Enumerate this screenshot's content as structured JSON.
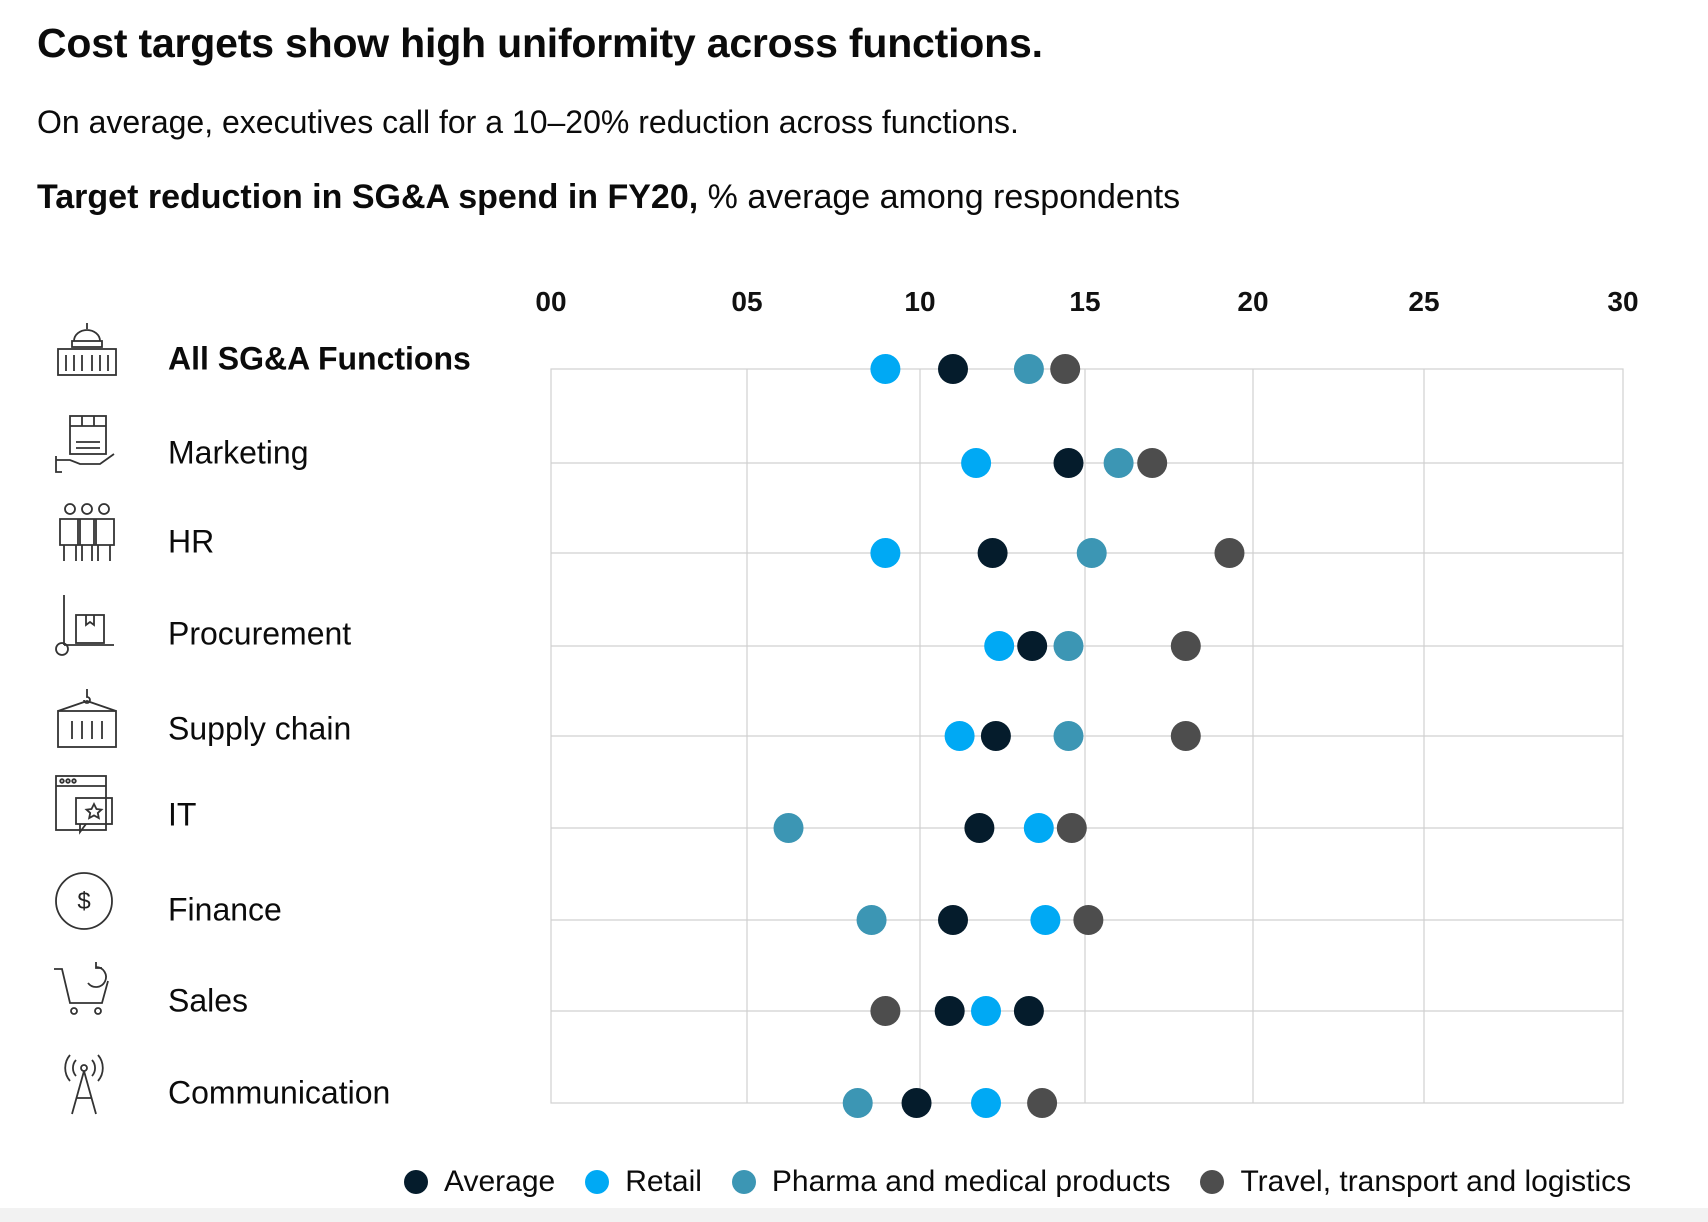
{
  "title": "Cost targets show high uniformity across functions.",
  "subtitle": "On average, executives call for a 10–20% reduction across functions.",
  "chart_label": {
    "bold": "Target reduction in SG&A spend in FY20,",
    "rest": "% average among respondents"
  },
  "chart_data": {
    "type": "scatter",
    "xlim": [
      0,
      30
    ],
    "x_ticks": [
      "00",
      "05",
      "10",
      "15",
      "20",
      "25",
      "30"
    ],
    "x_tick_values": [
      0,
      5,
      10,
      15,
      20,
      25,
      30
    ],
    "grid": true,
    "legend_position": "bottom",
    "categories": [
      "All SG&A Functions",
      "Marketing",
      "HR",
      "Procurement",
      "Supply chain",
      "IT",
      "Finance",
      "Sales",
      "Communication"
    ],
    "icons": [
      "capitol-building-icon",
      "hand-holding-box-icon",
      "people-group-icon",
      "hand-truck-icon",
      "shipping-container-icon",
      "browser-star-icon",
      "dollar-coin-icon",
      "shopping-cart-icon",
      "radio-tower-icon"
    ],
    "series": [
      {
        "name": "Average",
        "color": "#051c2c",
        "values": [
          11.0,
          14.5,
          12.2,
          13.4,
          12.3,
          11.8,
          11.0,
          10.9,
          9.9
        ]
      },
      {
        "name": "Retail",
        "color": "#00a9f4",
        "values": [
          9.0,
          11.7,
          9.0,
          12.4,
          11.2,
          13.6,
          13.8,
          12.0,
          12.0
        ]
      },
      {
        "name": "Pharma and medical products",
        "color": "#3c96b4",
        "values": [
          13.3,
          16.0,
          15.2,
          14.5,
          14.5,
          6.2,
          8.6,
          null,
          8.2
        ]
      },
      {
        "name": "Travel, transport and logistics",
        "color": "#4d4d4d",
        "values": [
          14.4,
          17.0,
          19.3,
          18.0,
          18.0,
          14.6,
          15.1,
          9.0,
          13.7
        ]
      }
    ],
    "extra_points": [
      {
        "category": "Sales",
        "x": 13.3,
        "color": "#051c2c"
      }
    ]
  }
}
